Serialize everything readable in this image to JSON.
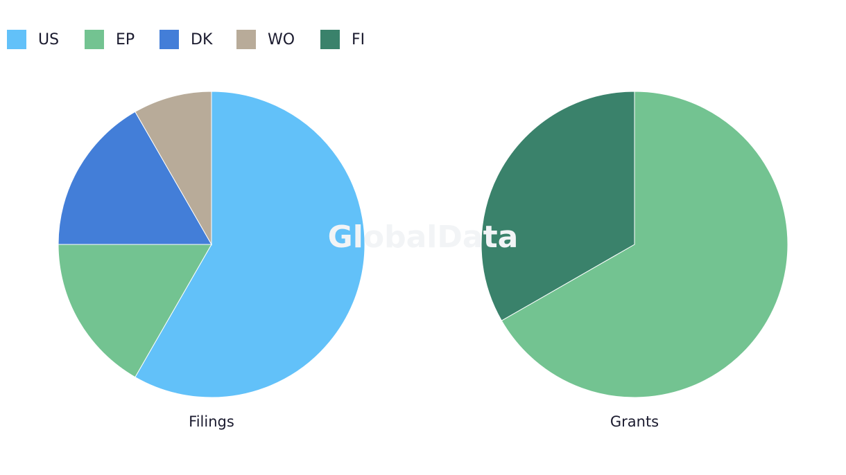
{
  "watermark": "GlobalData",
  "legend": [
    {
      "name": "US",
      "color": "#62c1f9"
    },
    {
      "name": "EP",
      "color": "#73c391"
    },
    {
      "name": "DK",
      "color": "#437ed8"
    },
    {
      "name": "WO",
      "color": "#b8ab99"
    },
    {
      "name": "FI",
      "color": "#3a826b"
    }
  ],
  "chart_data": [
    {
      "type": "pie",
      "title": "Filings",
      "categories": [
        "US",
        "EP",
        "DK",
        "WO"
      ],
      "values": [
        58.3,
        16.7,
        16.7,
        8.3
      ]
    },
    {
      "type": "pie",
      "title": "Grants",
      "categories": [
        "EP",
        "FI"
      ],
      "values": [
        66.7,
        33.3
      ]
    }
  ]
}
